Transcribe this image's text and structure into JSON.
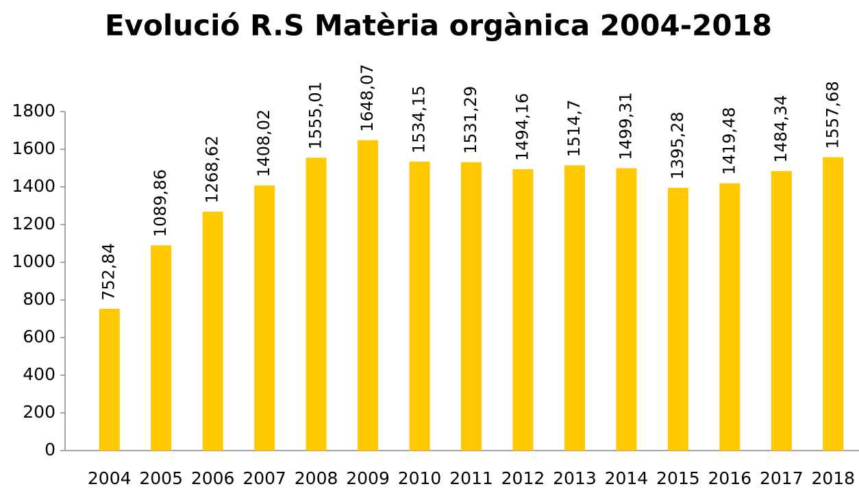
{
  "chart_data": {
    "type": "bar",
    "title": "Evolució R.S Matèria orgànica 2004-2018",
    "categories": [
      "2004",
      "2005",
      "2006",
      "2007",
      "2008",
      "2009",
      "2010",
      "2011",
      "2012",
      "2013",
      "2014",
      "2015",
      "2016",
      "2017",
      "2018"
    ],
    "values": [
      752.84,
      1089.86,
      1268.62,
      1408.02,
      1555.01,
      1648.07,
      1534.15,
      1531.29,
      1494.16,
      1514.7,
      1499.31,
      1395.28,
      1419.48,
      1484.34,
      1557.68
    ],
    "value_labels": [
      "752,84",
      "1089,86",
      "1268,62",
      "1408,02",
      "1555,01",
      "1648,07",
      "1534,15",
      "1531,29",
      "1494,16",
      "1514,7",
      "1499,31",
      "1395,28",
      "1419,48",
      "1484,34",
      "1557,68"
    ],
    "color": "#ffc800",
    "ylim": [
      0,
      1800
    ],
    "yticks": [
      0,
      200,
      400,
      600,
      800,
      1000,
      1200,
      1400,
      1600,
      1800
    ],
    "grid": false
  }
}
